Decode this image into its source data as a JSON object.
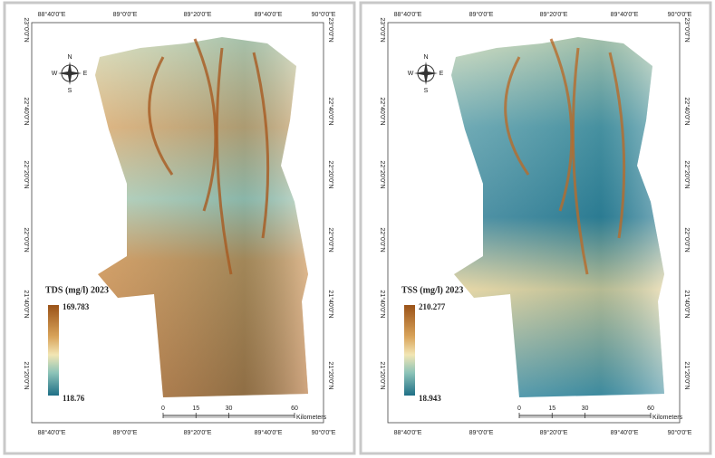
{
  "panels": [
    {
      "top_labels": [
        "88°40'0\"E",
        "89°0'0\"E",
        "89°20'0\"E",
        "89°40'0\"E",
        "90°0'0\"E"
      ],
      "bottom_labels": [
        "88°40'0\"E",
        "89°0'0\"E",
        "89°20'0\"E",
        "89°40'0\"E",
        "90°0'0\"E"
      ],
      "left_labels": [
        "23°0'0\"N",
        "22°40'0\"N",
        "22°20'0\"N",
        "22°0'0\"N",
        "21°40'0\"N",
        "21°20'0\"N"
      ],
      "right_labels": [
        "23°0'0\"N",
        "22°40'0\"N",
        "22°20'0\"N",
        "22°0'0\"N",
        "21°40'0\"N",
        "21°20'0\"N"
      ],
      "legend": {
        "title": "TDS (mg/l) 2023",
        "max": 169.783,
        "min": 118.76
      },
      "scale": {
        "ticks": [
          0,
          15,
          30,
          60
        ],
        "unit": "Kilometers"
      },
      "compass": {
        "n": "N",
        "e": "E",
        "s": "S",
        "w": "W"
      }
    },
    {
      "top_labels": [
        "88°40'0\"E",
        "89°0'0\"E",
        "89°20'0\"E",
        "89°40'0\"E",
        "90°0'0\"E"
      ],
      "bottom_labels": [
        "88°40'0\"E",
        "89°0'0\"E",
        "89°20'0\"E",
        "89°40'0\"E",
        "90°0'0\"E"
      ],
      "left_labels": [
        "23°0'0\"N",
        "22°40'0\"N",
        "22°20'0\"N",
        "22°0'0\"N",
        "21°40'0\"N",
        "21°20'0\"N"
      ],
      "right_labels": [
        "23°0'0\"N",
        "22°40'0\"N",
        "22°20'0\"N",
        "22°0'0\"N",
        "21°40'0\"N",
        "21°20'0\"N"
      ],
      "legend": {
        "title": "TSS (mg/l) 2023",
        "max": 210.277,
        "min": 18.943
      },
      "scale": {
        "ticks": [
          0,
          15,
          30,
          60
        ],
        "unit": "Kilometers"
      },
      "compass": {
        "n": "N",
        "e": "E",
        "s": "S",
        "w": "W"
      }
    }
  ]
}
